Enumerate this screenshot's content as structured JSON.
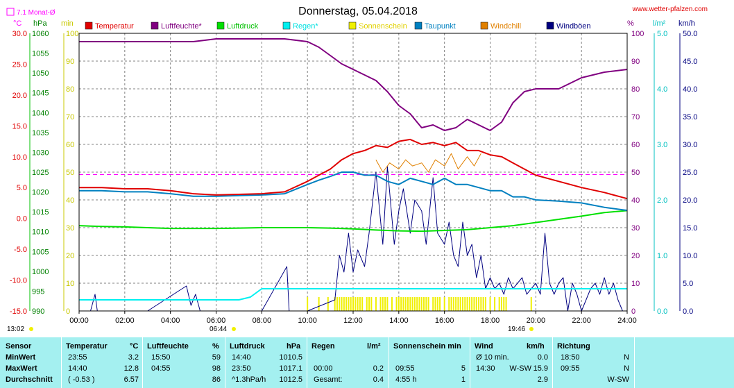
{
  "title": "Donnerstag, 05.04.2018",
  "website": "www.wetter-pfalzen.com",
  "month_avg_label": "7.1 Monat-Ø",
  "corner_labels": {
    "temp_unit": "°C",
    "press_unit": "hPa",
    "min_unit": "min",
    "pct_unit": "%",
    "rain_unit": "l/m²",
    "wind_unit": "km/h"
  },
  "sunrise_time": "06:44",
  "sunset_time": "19:46",
  "start_time": "13:02",
  "colors": {
    "temperatur": "#e00000",
    "luftfeuchte": "#800080",
    "luftdruck": "#00e000",
    "regen": "#00f0f0",
    "sonnenschein": "#f0f000",
    "taupunkt": "#0080c0",
    "windchill": "#e08000",
    "windboeen": "#000080",
    "monthavg": "#ff00ff"
  },
  "chart_data": {
    "type": "line",
    "title": "Donnerstag, 05.04.2018",
    "x_ticks": [
      "00:00",
      "02:00",
      "04:00",
      "06:00",
      "08:00",
      "10:00",
      "12:00",
      "14:00",
      "16:00",
      "18:00",
      "20:00",
      "22:00",
      "24:00"
    ],
    "axes": {
      "temperature_c": {
        "range": [
          -15,
          30
        ],
        "ticks": [
          "30.0",
          "25.0",
          "20.0",
          "15.0",
          "10.0",
          "5.0",
          "0.0",
          "-5.0",
          "-10.0",
          "-15.0"
        ]
      },
      "pressure_hpa": {
        "range": [
          990,
          1060
        ],
        "ticks": [
          "1060",
          "1055",
          "1050",
          "1045",
          "1040",
          "1035",
          "1030",
          "1025",
          "1020",
          "1015",
          "1010",
          "1005",
          "1000",
          "995",
          "990"
        ]
      },
      "sunshine_min": {
        "range": [
          0,
          100
        ],
        "ticks": [
          "100",
          "90",
          "80",
          "70",
          "60",
          "50",
          "40",
          "30",
          "20",
          "10",
          "0"
        ]
      },
      "humidity_pct": {
        "range": [
          0,
          100
        ],
        "ticks": [
          "100",
          "90",
          "80",
          "70",
          "60",
          "50",
          "40",
          "30",
          "20",
          "10",
          "0"
        ]
      },
      "rain_l_m2": {
        "range": [
          0,
          5
        ],
        "ticks": [
          "5.0",
          "4.0",
          "3.0",
          "2.0",
          "1.0",
          "0.0"
        ]
      },
      "wind_kmh": {
        "range": [
          0,
          50
        ],
        "ticks": [
          "50.0",
          "45.0",
          "40.0",
          "35.0",
          "30.0",
          "25.0",
          "20.0",
          "15.0",
          "10.0",
          "5.0",
          "0.0"
        ]
      }
    },
    "legend": [
      "Temperatur",
      "Luftfeuchte*",
      "Luftdruck",
      "Regen*",
      "Sonnenschein",
      "Taupunkt",
      "Windchill",
      "Windböen"
    ],
    "month_avg_temp": 7.1,
    "series": [
      {
        "name": "Temperatur",
        "axis": "temperature_c",
        "x": [
          0,
          1,
          2,
          3,
          4,
          5,
          6,
          7,
          8,
          9,
          10,
          10.5,
          11,
          11.5,
          12,
          12.5,
          13,
          13.5,
          14,
          14.5,
          15,
          15.5,
          16,
          16.5,
          17,
          17.5,
          18,
          18.5,
          19,
          19.5,
          20,
          21,
          22,
          23,
          24
        ],
        "y": [
          5.0,
          5.0,
          4.8,
          4.8,
          4.5,
          4.0,
          3.8,
          3.9,
          4.0,
          4.3,
          6.0,
          7.0,
          8.0,
          9.5,
          10.5,
          11.0,
          11.8,
          11.5,
          12.5,
          12.8,
          12.0,
          12.3,
          11.8,
          12.3,
          11.0,
          11.0,
          10.3,
          10.0,
          9.0,
          8.0,
          7.0,
          6.0,
          5.0,
          4.2,
          3.2
        ]
      },
      {
        "name": "Luftfeuchte*",
        "axis": "humidity_pct",
        "x": [
          0,
          1,
          2,
          3,
          4,
          5,
          6,
          7,
          8,
          9,
          10,
          10.5,
          11,
          11.5,
          12,
          12.5,
          13,
          13.5,
          14,
          14.5,
          15,
          15.5,
          16,
          16.5,
          17,
          17.5,
          18,
          18.5,
          19,
          19.5,
          20,
          21,
          22,
          23,
          24
        ],
        "y": [
          97,
          97,
          97,
          97,
          97,
          97,
          98,
          98,
          98,
          98,
          97,
          95,
          92,
          89,
          87,
          85,
          83,
          79,
          74,
          71,
          66,
          67,
          65,
          66,
          69,
          67,
          65,
          68,
          75,
          79,
          80,
          80,
          84,
          86,
          87
        ]
      },
      {
        "name": "Luftdruck",
        "axis": "pressure_hpa",
        "x": [
          0,
          1,
          2,
          3,
          4,
          5,
          6,
          7,
          8,
          9,
          10,
          11,
          12,
          13,
          14,
          15,
          16,
          17,
          18,
          19,
          20,
          21,
          22,
          23,
          24
        ],
        "y": [
          1011.5,
          1011.3,
          1011.2,
          1011.0,
          1010.8,
          1010.8,
          1010.8,
          1010.9,
          1011.0,
          1011.0,
          1011.0,
          1010.9,
          1010.7,
          1010.4,
          1010.2,
          1010.1,
          1010.3,
          1010.5,
          1011.0,
          1011.5,
          1012.3,
          1013.1,
          1013.9,
          1014.8,
          1015.3
        ]
      },
      {
        "name": "Regen*",
        "axis": "rain_l_m2",
        "x": [
          0,
          7,
          7.5,
          8,
          9,
          10,
          12,
          14,
          16,
          18,
          20,
          22,
          24
        ],
        "y": [
          0.2,
          0.2,
          0.25,
          0.4,
          0.4,
          0.4,
          0.4,
          0.4,
          0.4,
          0.4,
          0.4,
          0.4,
          0.4
        ]
      },
      {
        "name": "Taupunkt",
        "axis": "temperature_c",
        "x": [
          0,
          1,
          2,
          3,
          4,
          5,
          6,
          7,
          8,
          9,
          10,
          10.5,
          11,
          11.5,
          12,
          12.5,
          13,
          13.5,
          14,
          14.5,
          15,
          15.5,
          16,
          16.5,
          17,
          17.5,
          18,
          18.5,
          19,
          19.5,
          20,
          21,
          22,
          23,
          24
        ],
        "y": [
          4.5,
          4.5,
          4.3,
          4.3,
          4.0,
          3.6,
          3.6,
          3.7,
          3.8,
          4.0,
          5.5,
          6.2,
          6.8,
          7.5,
          7.5,
          7.0,
          7.0,
          6.0,
          5.5,
          6.5,
          6.0,
          5.5,
          6.5,
          5.5,
          5.5,
          5.0,
          4.5,
          4.5,
          3.5,
          3.5,
          3.0,
          2.8,
          2.5,
          1.8,
          1.3
        ]
      },
      {
        "name": "Windchill",
        "axis": "temperature_c",
        "x": [
          13,
          13.3,
          13.6,
          14,
          14.3,
          14.6,
          15,
          15.3,
          15.6,
          16,
          16.3,
          16.6,
          17,
          17.3,
          17.6
        ],
        "y": [
          9.5,
          7.5,
          9.0,
          8.0,
          9.5,
          8.5,
          9.0,
          7.5,
          9.5,
          8.5,
          10.5,
          8.0,
          10.0,
          8.5,
          10.5
        ]
      },
      {
        "name": "Windböen",
        "axis": "wind_kmh",
        "x": [
          0,
          0.5,
          0.7,
          0.8,
          1,
          3,
          4.7,
          4.9,
          5.1,
          5.3,
          8,
          9.1,
          9.2,
          9.4,
          9.6,
          10,
          11.2,
          11.4,
          11.6,
          11.8,
          12,
          12.2,
          12.5,
          12.7,
          13,
          13.3,
          13.5,
          13.8,
          14,
          14.2,
          14.5,
          14.7,
          15,
          15.2,
          15.5,
          15.7,
          16,
          16.2,
          16.4,
          16.6,
          16.8,
          17,
          17.2,
          17.4,
          17.6,
          17.8,
          18,
          18.2,
          18.4,
          18.6,
          18.8,
          19,
          19.2,
          19.4,
          19.6,
          19.8,
          20,
          20.2,
          20.4,
          20.6,
          20.8,
          21,
          21.2,
          21.4,
          21.6,
          21.8,
          22,
          22.2,
          22.4,
          22.6,
          22.8,
          23,
          23.2,
          23.4,
          23.6,
          23.8
        ],
        "y": [
          0,
          0,
          3,
          0,
          0,
          0,
          4.5,
          1.0,
          3.0,
          0,
          0,
          8.0,
          0,
          0,
          0,
          0,
          2.0,
          10.0,
          7.0,
          14.0,
          7.0,
          11.0,
          8.0,
          14.0,
          25.0,
          12.0,
          26.0,
          12.0,
          18.0,
          22.0,
          14.0,
          20.0,
          18.0,
          12.0,
          24.0,
          14.0,
          12.0,
          16.0,
          10.0,
          8.0,
          16.0,
          10.0,
          12.0,
          6.0,
          10.0,
          4.0,
          6.0,
          4.0,
          5.0,
          3.0,
          6.0,
          4.0,
          5.0,
          6.0,
          3.0,
          4.0,
          5.0,
          3.0,
          14.0,
          5.0,
          3.0,
          5.0,
          6.0,
          0,
          5.0,
          3.0,
          0,
          2.0,
          4.0,
          5.0,
          3.0,
          6.0,
          3.0,
          5.0,
          2.0,
          0
        ]
      }
    ],
    "sunshine_hours": [
      10.0,
      10.5,
      10.9,
      11.2,
      11.3,
      11.4,
      11.5,
      11.6,
      11.7,
      11.8,
      11.9,
      12.0,
      12.1,
      12.2,
      12.3,
      12.4,
      12.6,
      12.7,
      12.8,
      13.0,
      13.2,
      13.3,
      13.4,
      13.5,
      13.7,
      13.9,
      14.0,
      14.1,
      14.2,
      14.3,
      14.4,
      14.5,
      14.6,
      14.7,
      14.8,
      14.9,
      15.0,
      15.1,
      15.2,
      15.3,
      15.5,
      15.6,
      15.7,
      15.8,
      16.0,
      16.2,
      16.3,
      16.4,
      16.5,
      16.6,
      16.7,
      16.8,
      16.9,
      17.0,
      17.1,
      17.2,
      17.3,
      17.4,
      17.5,
      17.6,
      17.7,
      17.8,
      18.0,
      18.2,
      18.4,
      18.5,
      18.6,
      18.7,
      19.8
    ]
  },
  "stats": {
    "headers": {
      "sensor": "Sensor",
      "temperatur": "Temperatur",
      "temp_unit": "°C",
      "luftfeuchte": "Luftfeuchte",
      "lf_unit": "%",
      "luftdruck": "Luftdruck",
      "ld_unit": "hPa",
      "regen": "Regen",
      "regen_unit": "l/m²",
      "sonne": "Sonnenschein min",
      "wind": "Wind",
      "wind_unit": "km/h",
      "richtung": "Richtung"
    },
    "rows": [
      {
        "label": "MinWert",
        "t_time": "23:55",
        "t_val": "3.2",
        "h_time": "15:50",
        "h_val": "59",
        "p_time": "14:40",
        "p_val": "1010.5",
        "r_time": "",
        "r_val": "",
        "s_time": "",
        "s_val": "",
        "w_time": "Ø 10 min.",
        "w_dir": "",
        "w_val": "0.0",
        "d_time": "18:50",
        "d_val": "N"
      },
      {
        "label": "MaxWert",
        "t_time": "14:40",
        "t_val": "12.8",
        "h_time": "04:55",
        "h_val": "98",
        "p_time": "23:50",
        "p_val": "1017.1",
        "r_time": "00:00",
        "r_val": "0.2",
        "s_time": "09:55",
        "s_val": "5",
        "w_time": "14:30",
        "w_dir": "W-SW",
        "w_val": "15.9",
        "d_time": "09:55",
        "d_val": "N"
      },
      {
        "label": "Durchschnitt",
        "t_time": "( -0.53 )",
        "t_val": "6.57",
        "h_time": "",
        "h_val": "86",
        "p_time": "^1.3hPa/h",
        "p_val": "1012.5",
        "r_time": "Gesamt:",
        "r_val": "0.4",
        "s_time": "4:55 h",
        "s_val": "1",
        "w_time": "",
        "w_dir": "",
        "w_val": "2.9",
        "d_time": "",
        "d_val": "W-SW"
      }
    ]
  }
}
